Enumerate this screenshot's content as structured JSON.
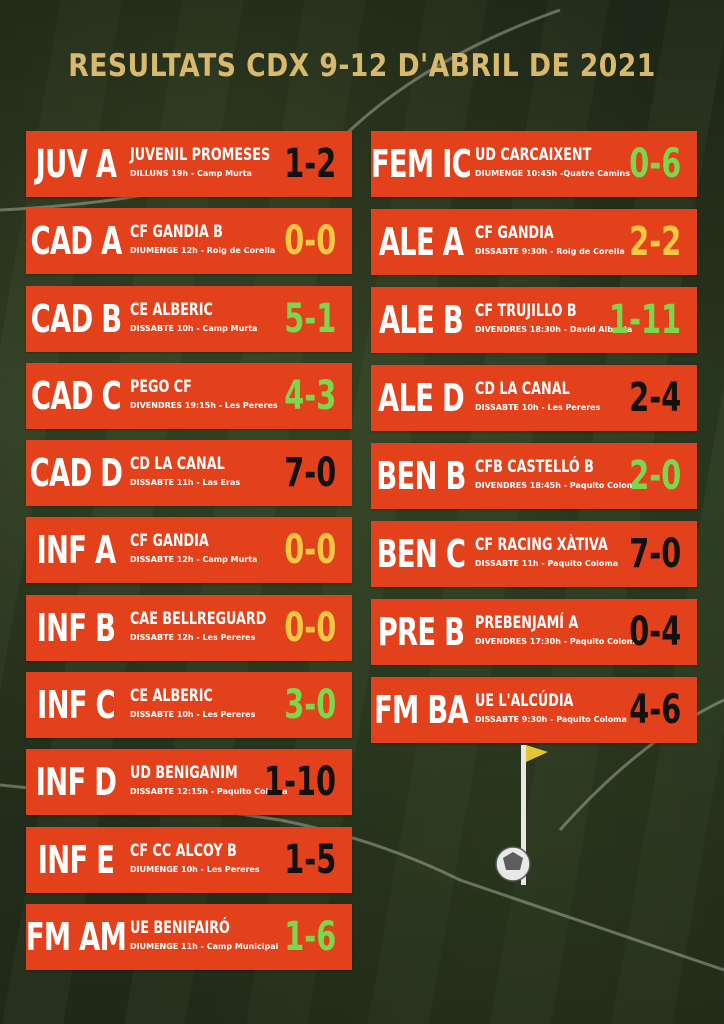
{
  "title": "RESULTATS CDX 9-12 D'ABRIL DE 2021",
  "colors": {
    "card": "#e2411c",
    "title": "#d9b96e",
    "win": "#7bd84d",
    "draw": "#f5c843",
    "loss": "#111111"
  },
  "left": [
    {
      "code": "JUV A",
      "team": "JUVENIL PROMESES",
      "info": "DILLUNS 19h - Camp Murta",
      "score": "1-2",
      "result": "loss"
    },
    {
      "code": "CAD A",
      "team": "CF GANDIA B",
      "info": "DIUMENGE 12h - Roig de Corella",
      "score": "0-0",
      "result": "draw"
    },
    {
      "code": "CAD B",
      "team": "CE ALBERIC",
      "info": "DISSABTE 10h - Camp Murta",
      "score": "5-1",
      "result": "win"
    },
    {
      "code": "CAD C",
      "team": "PEGO CF",
      "info": "DIVENDRES 19:15h - Les Pereres",
      "score": "4-3",
      "result": "win"
    },
    {
      "code": "CAD D",
      "team": "CD LA CANAL",
      "info": "DISSABTE 11h - Las Eras",
      "score": "7-0",
      "result": "loss"
    },
    {
      "code": "INF A",
      "team": "CF GANDIA",
      "info": "DISSABTE 12h - Camp Murta",
      "score": "0-0",
      "result": "draw"
    },
    {
      "code": "INF B",
      "team": "CAE BELLREGUARD",
      "info": "DISSABTE 12h - Les Pereres",
      "score": "0-0",
      "result": "draw"
    },
    {
      "code": "INF C",
      "team": "CE ALBERIC",
      "info": "DISSABTE 10h - Les Pereres",
      "score": "3-0",
      "result": "win"
    },
    {
      "code": "INF D",
      "team": "UD BENIGANIM",
      "info": "DISSABTE 12:15h - Paquito Coloma",
      "score": "1-10",
      "result": "loss"
    },
    {
      "code": "INF E",
      "team": "CF CC ALCOY B",
      "info": "DIUMENGE 10h - Les Pereres",
      "score": "1-5",
      "result": "loss"
    },
    {
      "code": "FM AM",
      "team": "UE BENIFAIRÓ",
      "info": "DIUMENGE 11h - Camp Municipal",
      "score": "1-6",
      "result": "win"
    }
  ],
  "right": [
    {
      "code": "FEM IC",
      "team": "UD CARCAIXENT",
      "info": "DIUMENGE 10:45h -Quatre Camins",
      "score": "0-6",
      "result": "win"
    },
    {
      "code": "ALE A",
      "team": "CF GANDIA",
      "info": "DISSABTE 9:30h - Roig de Corella",
      "score": "2-2",
      "result": "draw"
    },
    {
      "code": "ALE B",
      "team": "CF TRUJILLO B",
      "info": "DIVENDRES 18:30h - David Albelda",
      "score": "1-11",
      "result": "win"
    },
    {
      "code": "ALE D",
      "team": "CD LA CANAL",
      "info": "DISSABTE 10h - Les Pereres",
      "score": "2-4",
      "result": "loss"
    },
    {
      "code": "BEN B",
      "team": "CFB CASTELLÓ B",
      "info": "DIVENDRES 18:45h - Paquito Coloma",
      "score": "2-0",
      "result": "win"
    },
    {
      "code": "BEN C",
      "team": "CF RACING XÀTIVA",
      "info": "DISSABTE 11h - Paquito Coloma",
      "score": "7-0",
      "result": "loss"
    },
    {
      "code": "PRE B",
      "team": "PREBENJAMÍ A",
      "info": "DIVENDRES 17:30h - Paquito Coloma",
      "score": "0-4",
      "result": "loss"
    },
    {
      "code": "FM BA",
      "team": "UE L'ALCÚDIA",
      "info": "DISSABTE 9:30h - Paquito Coloma",
      "score": "4-6",
      "result": "loss"
    }
  ]
}
